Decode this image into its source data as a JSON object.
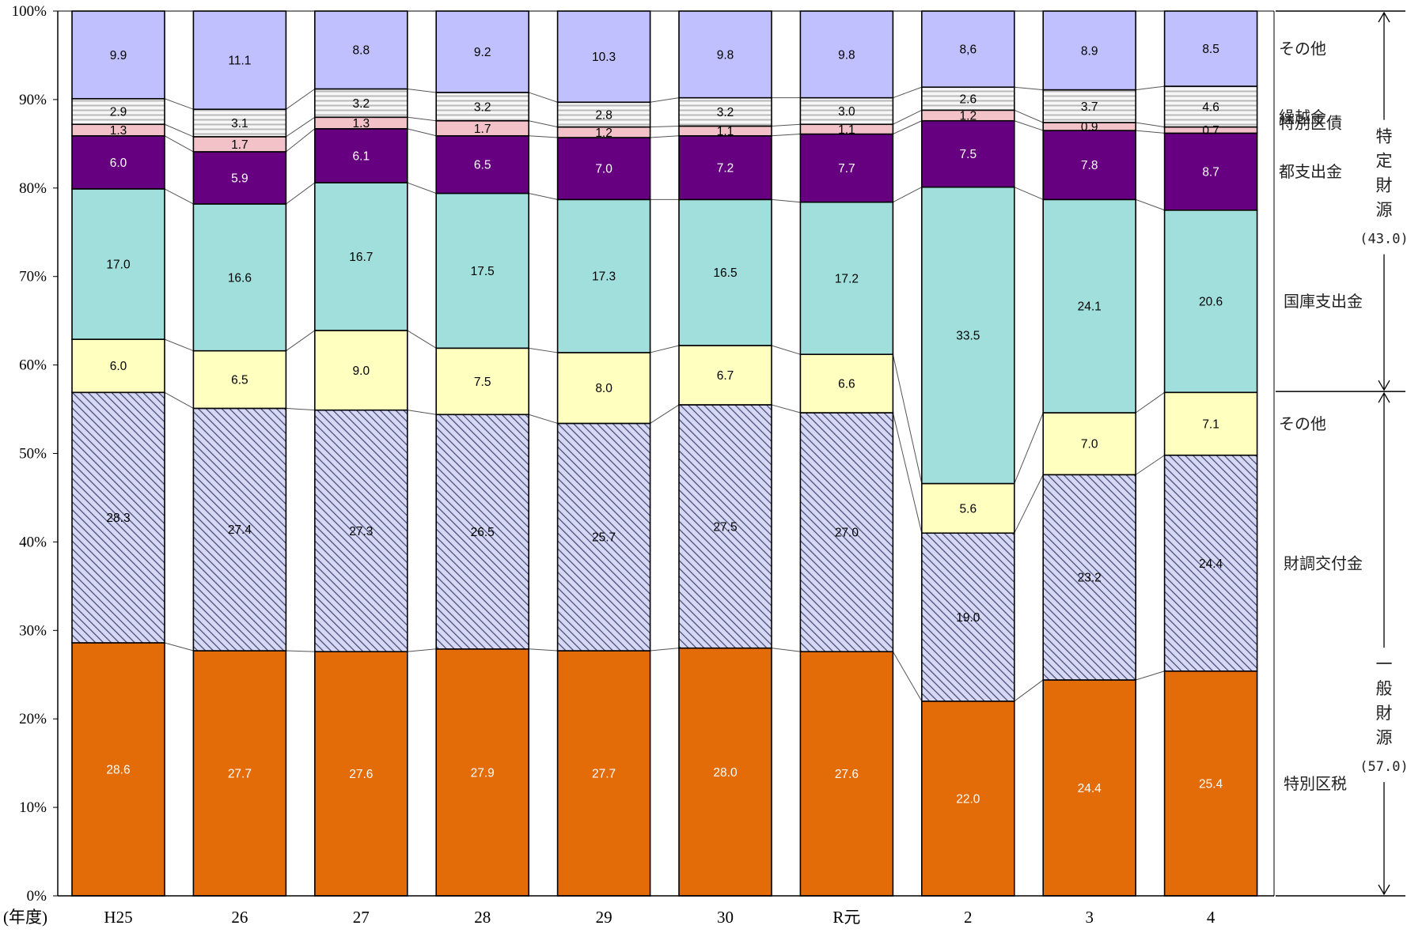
{
  "chart_data": {
    "type": "bar",
    "stacked": true,
    "percent": true,
    "categories": [
      "H25",
      "26",
      "27",
      "28",
      "29",
      "30",
      "R元",
      "2",
      "3",
      "4"
    ],
    "category_axis_prefix": "(年度)",
    "ylim": [
      0,
      100
    ],
    "y_ticks": [
      "0%",
      "10%",
      "20%",
      "30%",
      "40%",
      "50%",
      "60%",
      "70%",
      "80%",
      "90%",
      "100%"
    ],
    "connector_lines": true,
    "series": [
      {
        "name": "特別区税",
        "color": "#e36c09",
        "pattern": "none",
        "text_color": "#ffffff",
        "values": [
          28.6,
          27.7,
          27.6,
          27.9,
          27.7,
          28.0,
          27.6,
          22.0,
          24.4,
          25.4
        ],
        "labels": [
          "28.6",
          "27.7",
          "27.6",
          "27.9",
          "27.7",
          "28.0",
          "27.6",
          "22.0",
          "24.4",
          "25.4"
        ]
      },
      {
        "name": "財調交付金",
        "color": "#c6c8ec",
        "pattern": "hatch",
        "text_color": "#000000",
        "values": [
          28.3,
          27.4,
          27.3,
          26.5,
          25.7,
          27.5,
          27.0,
          19.0,
          23.2,
          24.4
        ],
        "labels": [
          "28.3",
          "27.4",
          "27.3",
          "26.5",
          "25.7",
          "27.5",
          "27.0",
          "19.0",
          "23.2",
          "24.4"
        ]
      },
      {
        "name": "その他",
        "color": "#ffffc0",
        "pattern": "none",
        "text_color": "#000000",
        "values": [
          6.0,
          6.5,
          9.0,
          7.5,
          8.0,
          6.7,
          6.6,
          5.6,
          7.0,
          7.1
        ],
        "labels": [
          "6.0",
          "6.5",
          "9.0",
          "7.5",
          "8.0",
          "6.7",
          "6.6",
          "5.6",
          "7.0",
          "7.1"
        ]
      },
      {
        "name": "国庫支出金",
        "color": "#a1dfdd",
        "pattern": "none",
        "text_color": "#000000",
        "values": [
          17.0,
          16.6,
          16.7,
          17.5,
          17.3,
          16.5,
          17.2,
          33.5,
          24.1,
          20.6
        ],
        "labels": [
          "17.0",
          "16.6",
          "16.7",
          "17.5",
          "17.3",
          "16.5",
          "17.2",
          "33.5",
          "24.1",
          "20.6"
        ]
      },
      {
        "name": "都支出金",
        "color": "#660080",
        "pattern": "none",
        "text_color": "#ffffff",
        "values": [
          6.0,
          5.9,
          6.1,
          6.5,
          7.0,
          7.2,
          7.7,
          7.5,
          7.8,
          8.7
        ],
        "labels": [
          "6.0",
          "5.9",
          "6.1",
          "6.5",
          "7.0",
          "7.2",
          "7.7",
          "7.5",
          "7.8",
          "8.7"
        ]
      },
      {
        "name": "特別区債",
        "color": "#f3c2c8",
        "pattern": "none",
        "text_color": "#000000",
        "values": [
          1.3,
          1.7,
          1.3,
          1.7,
          1.2,
          1.1,
          1.1,
          1.2,
          0.9,
          0.7
        ],
        "labels": [
          "1.3",
          "1.7",
          "1.3",
          "1.7",
          "1.2",
          "1.1",
          "1.1",
          "1.2",
          "0.9",
          "0.7"
        ]
      },
      {
        "name": "繰越金",
        "color": "#f2f2f2",
        "pattern": "stripes",
        "text_color": "#000000",
        "values": [
          2.9,
          3.1,
          3.2,
          3.2,
          2.8,
          3.2,
          3.0,
          2.6,
          3.7,
          4.6
        ],
        "labels": [
          "2.9",
          "3.1",
          "3.2",
          "3.2",
          "2.8",
          "3.2",
          "3.0",
          "2.6",
          "3.7",
          "4.6"
        ]
      },
      {
        "name": "その他",
        "color": "#c0c0ff",
        "pattern": "none",
        "text_color": "#000000",
        "values": [
          9.9,
          11.1,
          8.8,
          9.2,
          10.3,
          9.8,
          9.8,
          8.6,
          8.9,
          8.5
        ],
        "labels": [
          "9.9",
          "11.1",
          "8.8",
          "9.2",
          "10.3",
          "9.8",
          "9.8",
          "8,6",
          "8.9",
          "8.5"
        ]
      }
    ],
    "groups": [
      {
        "text": "特定財源",
        "total": "(43.0)",
        "from": 57.0,
        "to": 100
      },
      {
        "text": "一般財源",
        "total": "(57.0)",
        "from": 0,
        "to": 57.0
      }
    ]
  }
}
